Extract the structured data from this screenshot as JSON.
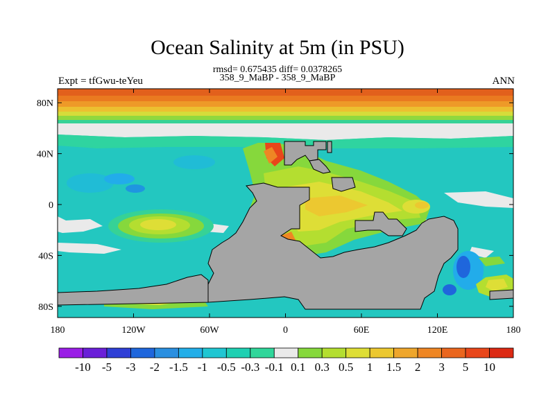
{
  "title": "Ocean Salinity at 5m (in PSU)",
  "stats_line": "rmsd= 0.675435 diff= 0.0378265",
  "case_line": "358_9_MaBP - 358_9_MaBP",
  "experiment_label": "Expt = tfGwu-teYeu",
  "season_label": "ANN",
  "lat_ticks": [
    "80N",
    "40N",
    "0",
    "40S",
    "80S"
  ],
  "lon_ticks": [
    "180",
    "120W",
    "60W",
    "0",
    "60E",
    "120E",
    "180"
  ],
  "colorbar": {
    "labels": [
      "-10",
      "-5",
      "-3",
      "-2",
      "-1.5",
      "-1",
      "-0.5",
      "-0.3",
      "-0.1",
      "0.1",
      "0.3",
      "0.5",
      "1",
      "1.5",
      "2",
      "3",
      "5",
      "10"
    ],
    "colors": [
      "#9a1ee6",
      "#6a1fd8",
      "#2f3fd6",
      "#1f66dc",
      "#2a8fe0",
      "#23aee8",
      "#20c6d2",
      "#1fd0b2",
      "#30d69a",
      "#eaeaea",
      "#86d83c",
      "#b4de30",
      "#dede36",
      "#ecc830",
      "#eea62c",
      "#ee8624",
      "#ea661e",
      "#e8461a",
      "#dc2a14"
    ]
  },
  "colors": {
    "land": "#a5a5a5",
    "ocean_base": "#23c7c0"
  }
}
